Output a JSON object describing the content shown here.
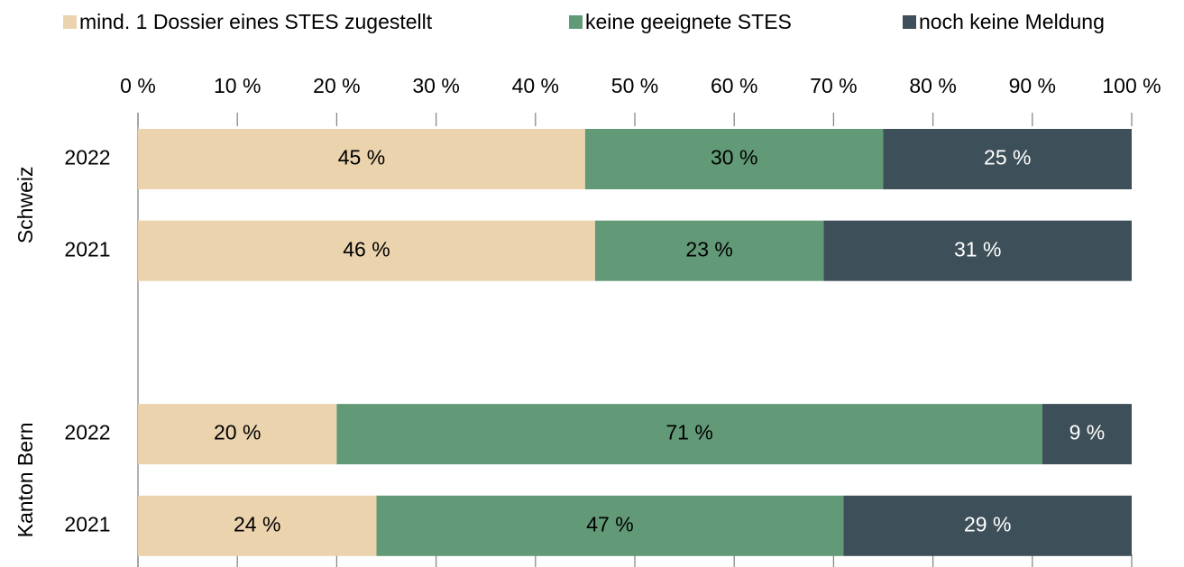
{
  "chart_data": {
    "type": "stacked-bar-horizontal",
    "groups": [
      {
        "name": "Schweiz",
        "categories": [
          "2022",
          "2021"
        ]
      },
      {
        "name": "Kanton Bern",
        "categories": [
          "2022",
          "2021"
        ]
      }
    ],
    "series": [
      {
        "name": "mind. 1 Dossier eines STES zugestellt",
        "color": "#ebd3ad",
        "label_color": "#000000",
        "values": [
          45,
          46,
          20,
          24
        ],
        "value_labels": [
          "45 %",
          "46 %",
          "20 %",
          "24 %"
        ]
      },
      {
        "name": "keine geeignete STES",
        "color": "#629a78",
        "label_color": "#000000",
        "values": [
          30,
          23,
          71,
          47
        ],
        "value_labels": [
          "30 %",
          "23 %",
          "71 %",
          "47 %"
        ]
      },
      {
        "name": "noch keine Meldung",
        "color": "#3d4f58",
        "label_color": "#ffffff",
        "values": [
          25,
          31,
          9,
          29
        ],
        "value_labels": [
          "25 %",
          "31 %",
          "9 %",
          "29 %"
        ]
      }
    ],
    "xlim": [
      0,
      100
    ],
    "xticks": [
      {
        "value": 0,
        "label": "0 %"
      },
      {
        "value": 10,
        "label": "10 %"
      },
      {
        "value": 20,
        "label": "20 %"
      },
      {
        "value": 30,
        "label": "30 %"
      },
      {
        "value": 40,
        "label": "40 %"
      },
      {
        "value": 50,
        "label": "50 %"
      },
      {
        "value": 60,
        "label": "60 %"
      },
      {
        "value": 70,
        "label": "70 %"
      },
      {
        "value": 80,
        "label": "80 %"
      },
      {
        "value": 90,
        "label": "90 %"
      },
      {
        "value": 100,
        "label": "100 %"
      }
    ],
    "legend": "top"
  }
}
